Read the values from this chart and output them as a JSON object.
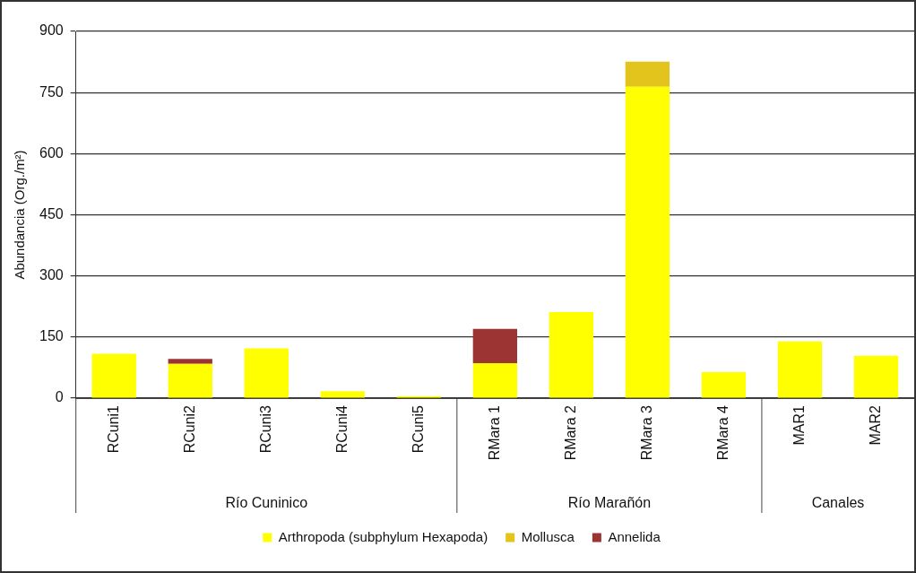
{
  "chart_data": {
    "type": "bar",
    "stacked": true,
    "ylabel": "Abundancia (Org./m²)",
    "categories": [
      "RCuni1",
      "RCuni2",
      "RCuni3",
      "RCuni4",
      "RCuni5",
      "RMara 1",
      "RMara 2",
      "RMara 3",
      "RMara 4",
      "MAR1",
      "MAR2"
    ],
    "series": [
      {
        "name": "Arthropoda (subphylum Hexapoda)",
        "color": "#ffff00",
        "values": [
          109,
          84,
          122,
          17,
          5,
          86,
          211,
          764,
          64,
          139,
          104
        ]
      },
      {
        "name": "Mollusca",
        "color": "#e3c41c",
        "values": [
          0,
          0,
          0,
          0,
          0,
          0,
          0,
          62,
          0,
          0,
          0
        ]
      },
      {
        "name": "Annelida",
        "color": "#9c3434",
        "values": [
          0,
          12,
          0,
          0,
          0,
          84,
          0,
          0,
          0,
          0,
          0
        ]
      }
    ],
    "ylim": [
      0,
      900
    ],
    "yticks": [
      0,
      150,
      300,
      450,
      600,
      750,
      900
    ],
    "grid": "y",
    "legend": "bottom",
    "annotations": [
      "Río Cuninico",
      "Río Marañón",
      "Canales"
    ]
  }
}
